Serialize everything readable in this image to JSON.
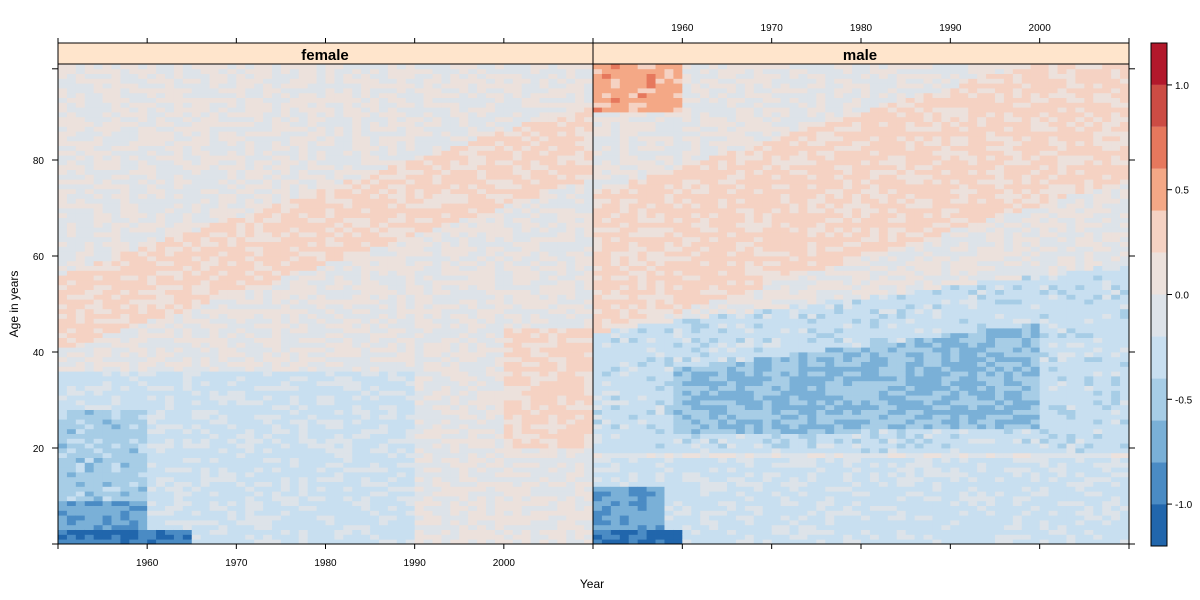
{
  "chart_data": {
    "type": "heatmap",
    "title": "",
    "xlabel": "Year",
    "ylabel": "Age in years",
    "x_range": [
      1950,
      2010
    ],
    "y_range": [
      0,
      99
    ],
    "x_ticks": [
      1960,
      1970,
      1980,
      1990,
      2000
    ],
    "y_ticks": [
      20,
      40,
      60,
      80
    ],
    "panels": [
      {
        "name": "female",
        "features": [
          {
            "kind": "age_band",
            "age_from": 0,
            "age_to": 3,
            "year_from": 1950,
            "year_to": 1965,
            "level": -1.0
          },
          {
            "kind": "age_band",
            "age_from": 3,
            "age_to": 9,
            "year_from": 1950,
            "year_to": 1960,
            "level": -0.75
          },
          {
            "kind": "age_band",
            "age_from": 9,
            "age_to": 28,
            "year_from": 1950,
            "year_to": 1960,
            "level": -0.5
          },
          {
            "kind": "age_band",
            "age_from": 0,
            "age_to": 36,
            "year_from": 1950,
            "year_to": 1990,
            "level": -0.25
          },
          {
            "kind": "cohort_band",
            "age_at_1950": 48,
            "slope": 0.6,
            "width": 16,
            "level": 0.25
          },
          {
            "kind": "late_young_adult",
            "age_from": 20,
            "age_to": 45,
            "year_from": 2000,
            "year_to": 2010,
            "level": 0.25
          }
        ]
      },
      {
        "name": "male",
        "features": [
          {
            "kind": "age_band",
            "age_from": 0,
            "age_to": 3,
            "year_from": 1950,
            "year_to": 1960,
            "level": -1.0
          },
          {
            "kind": "age_band",
            "age_from": 3,
            "age_to": 12,
            "year_from": 1950,
            "year_to": 1958,
            "level": -0.75
          },
          {
            "kind": "young_adult_trough",
            "age_center_1950": 28,
            "age_center_2010": 36,
            "level": -0.6
          },
          {
            "kind": "age_band",
            "age_from": 0,
            "age_to": 18,
            "year_from": 1950,
            "year_to": 2010,
            "level": -0.25
          },
          {
            "kind": "cohort_band",
            "age_at_1950": 58,
            "slope": 0.55,
            "width": 30,
            "level": 0.25
          },
          {
            "kind": "old_age",
            "age_from": 90,
            "age_to": 100,
            "year_from": 1950,
            "year_to": 1960,
            "level": 0.5
          }
        ]
      }
    ],
    "colorkey": {
      "range": [
        -1.2,
        1.2
      ],
      "breaks": [
        -1.2,
        -1.0,
        -0.8,
        -0.6,
        -0.4,
        -0.2,
        0.0,
        0.2,
        0.4,
        0.6,
        0.8,
        1.0,
        1.2
      ],
      "colors": [
        "#2166ac",
        "#4a8bc4",
        "#7ab0d7",
        "#a7cde6",
        "#c8dff0",
        "#dde3e9",
        "#ece1dc",
        "#f5d2c3",
        "#f4a886",
        "#e6785d",
        "#cc4c44",
        "#b2182b"
      ],
      "tick_values": [
        -1.0,
        -0.5,
        0.0,
        0.5,
        1.0
      ],
      "tick_labels": [
        "-1.0",
        "-0.5",
        "0.0",
        "0.5",
        "1.0"
      ]
    }
  }
}
